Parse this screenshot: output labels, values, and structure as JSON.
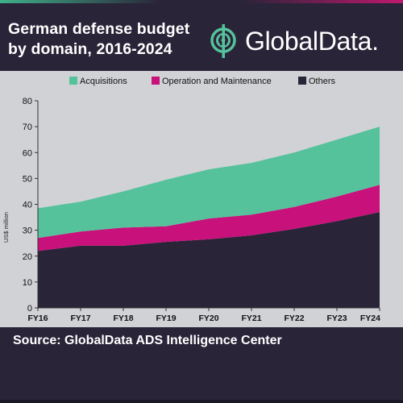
{
  "header": {
    "title_line1": "German defense budget",
    "title_line2": "by domain, 2016-2024",
    "logo_text": "GlobalData."
  },
  "footer": {
    "source": "Source:  GlobalData ADS Intelligence Center"
  },
  "colors": {
    "background": "#2a2438",
    "panel": "#d0d2d6",
    "acquisitions": "#55c29b",
    "operation_maintenance": "#c8117a",
    "others": "#2a2438",
    "logo_accent": "#55c29b"
  },
  "chart_data": {
    "type": "area",
    "stacked": true,
    "title": "German defense budget by domain, 2016-2024",
    "categories": [
      "FY16",
      "FY17",
      "FY18",
      "FY19",
      "FY20",
      "FY21",
      "FY22",
      "FY23",
      "FY24"
    ],
    "ylabel": "US$ million",
    "xlabel": "",
    "ylim": [
      0,
      80
    ],
    "yticks": [
      0,
      10,
      20,
      30,
      40,
      50,
      60,
      70,
      80
    ],
    "grid": false,
    "legend": "top",
    "series": [
      {
        "name": "Others",
        "color": "#2a2438",
        "values": [
          22.0,
          24.0,
          24.0,
          25.5,
          26.5,
          28.0,
          30.5,
          33.5,
          37.0
        ]
      },
      {
        "name": "Operation and Maintenance",
        "color": "#c8117a",
        "values": [
          5.0,
          5.5,
          7.0,
          6.0,
          8.0,
          8.0,
          8.5,
          9.5,
          10.5
        ]
      },
      {
        "name": "Acquisitions",
        "color": "#55c29b",
        "values": [
          11.5,
          11.5,
          14.0,
          18.0,
          19.0,
          20.0,
          21.0,
          22.0,
          22.5
        ]
      }
    ],
    "legend_order": [
      "Acquisitions",
      "Operation and Maintenance",
      "Others"
    ]
  }
}
